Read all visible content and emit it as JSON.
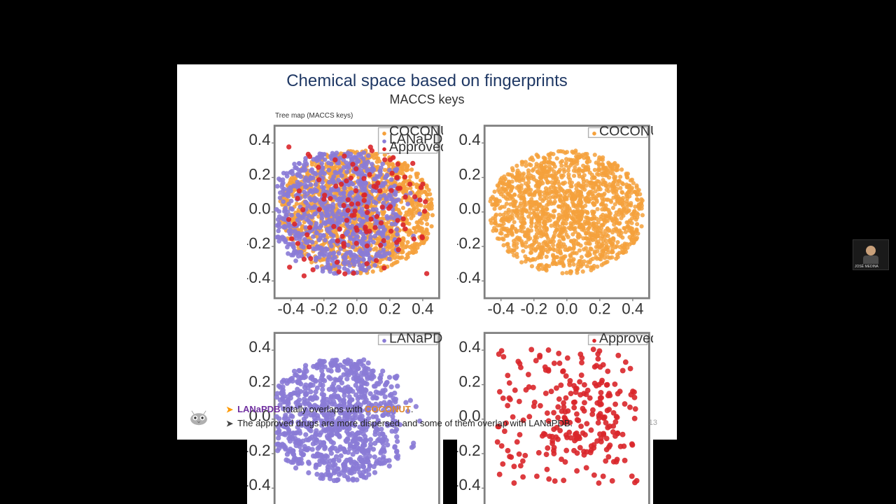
{
  "title": "Chemical space based on fingerprints",
  "subtitle": "MACCS keys",
  "overall_plot_title": "Tree map (MACCS keys)",
  "page_number": "13",
  "speaker_label": "JOSÉ MEDINA",
  "colors": {
    "coconut": "#f5a13c",
    "lanapdb": "#8a7bd6",
    "approved": "#d9262a",
    "panel_border": "#808080",
    "title_color": "#1f3864"
  },
  "bullets": [
    {
      "arrow_color": "#ff9900",
      "parts": [
        {
          "text": "LANaPDB",
          "class": "lanapdb"
        },
        {
          "text": " totally overlaps with ",
          "class": ""
        },
        {
          "text": "COCONUT",
          "class": "coconut"
        },
        {
          "text": ".",
          "class": ""
        }
      ]
    },
    {
      "arrow_color": "#444444",
      "parts": [
        {
          "text": "The approved drugs are more dispersed and some of them overlap with LANaPDB.",
          "class": ""
        }
      ]
    }
  ],
  "axis": {
    "xlim": [
      -0.5,
      0.5
    ],
    "ylim": [
      -0.5,
      0.5
    ],
    "xticks": [
      -0.4,
      -0.2,
      0.0,
      0.2,
      0.4
    ],
    "yticks": [
      -0.4,
      -0.2,
      0.0,
      0.2,
      0.4
    ],
    "tick_fontsize": 8
  },
  "panels": [
    {
      "key": "combined",
      "legend": [
        {
          "label": "COCONUT",
          "color": "#f5a13c"
        },
        {
          "label": "LANaPDB",
          "color": "#8a7bd6"
        },
        {
          "label": "Approved drugs",
          "color": "#d9262a"
        }
      ],
      "series": [
        {
          "color": "#f5a13c",
          "n": 1400,
          "shape": "blob",
          "spread": 0.45,
          "marker_r": 1.1,
          "seed": 11
        },
        {
          "color": "#8a7bd6",
          "n": 900,
          "shape": "leftblob",
          "spread": 0.45,
          "marker_r": 1.2,
          "seed": 22
        },
        {
          "color": "#d9262a",
          "n": 120,
          "shape": "scatter",
          "spread": 0.45,
          "marker_r": 1.3,
          "seed": 33
        }
      ],
      "marker_alpha": 0.9
    },
    {
      "key": "coconut_only",
      "legend": [
        {
          "label": "COCONUT",
          "color": "#f5a13c"
        }
      ],
      "series": [
        {
          "color": "#f5a13c",
          "n": 1500,
          "shape": "blob",
          "spread": 0.45,
          "marker_r": 1.1,
          "seed": 11
        }
      ],
      "marker_alpha": 0.85
    },
    {
      "key": "lanapdb_only",
      "legend": [
        {
          "label": "LANaPDB",
          "color": "#8a7bd6"
        }
      ],
      "series": [
        {
          "color": "#8a7bd6",
          "n": 1000,
          "shape": "leftblob",
          "spread": 0.45,
          "marker_r": 1.3,
          "seed": 22
        }
      ],
      "marker_alpha": 0.9
    },
    {
      "key": "approved_only",
      "legend": [
        {
          "label": "Approved drugs",
          "color": "#d9262a"
        }
      ],
      "series": [
        {
          "color": "#d9262a",
          "n": 260,
          "shape": "scatter",
          "spread": 0.45,
          "marker_r": 1.4,
          "seed": 33
        }
      ],
      "marker_alpha": 0.9
    }
  ]
}
